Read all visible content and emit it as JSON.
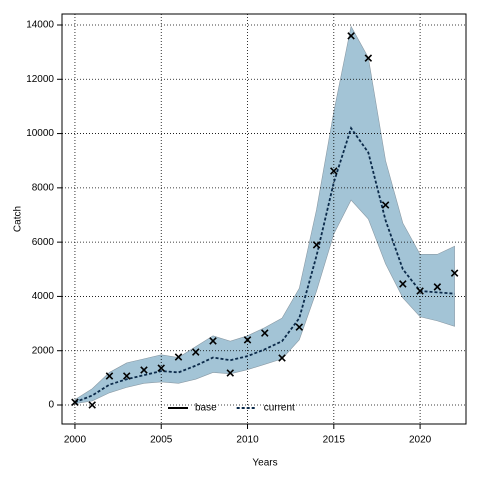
{
  "chart_data": {
    "type": "line",
    "xlabel": "Years",
    "ylabel": "Catch",
    "x": [
      2000,
      2001,
      2002,
      2003,
      2004,
      2005,
      2006,
      2007,
      2008,
      2009,
      2010,
      2011,
      2012,
      2013,
      2014,
      2015,
      2016,
      2017,
      2018,
      2019,
      2020,
      2021,
      2022
    ],
    "observed": {
      "values": [
        100,
        0,
        1070,
        1070,
        1290,
        1360,
        1770,
        1950,
        2360,
        1180,
        2400,
        2650,
        1730,
        2870,
        5900,
        8620,
        13600,
        12780,
        7370,
        4460,
        4200,
        4350,
        4860
      ],
      "color": "#000000"
    },
    "band": {
      "lower": [
        50,
        150,
        450,
        650,
        800,
        850,
        800,
        950,
        1200,
        1150,
        1300,
        1500,
        1700,
        2400,
        4200,
        6300,
        7550,
        6850,
        5200,
        3950,
        3250,
        3100,
        2900
      ],
      "upper": [
        200,
        600,
        1200,
        1550,
        1700,
        1850,
        1750,
        2150,
        2550,
        2350,
        2550,
        2850,
        3200,
        4300,
        7200,
        10800,
        13950,
        12800,
        9000,
        6700,
        5550,
        5550,
        5850
      ],
      "color": "#a3c4d6"
    },
    "series": [
      {
        "name": "base",
        "color": "#000000",
        "dashed": false,
        "values": [
          null,
          null,
          null,
          null,
          null,
          null,
          null,
          null,
          null,
          null,
          null,
          null,
          null,
          null,
          null,
          null,
          null,
          null,
          null,
          null,
          null,
          null,
          null
        ]
      },
      {
        "name": "current",
        "color": "#0b2a4a",
        "dashed": true,
        "values": [
          100,
          350,
          750,
          950,
          1100,
          1250,
          1200,
          1450,
          1750,
          1650,
          1800,
          2050,
          2350,
          3200,
          5500,
          8200,
          10200,
          9300,
          6800,
          5000,
          4200,
          4150,
          4100
        ]
      }
    ],
    "xlim": [
      1999.25,
      2022.66
    ],
    "xticks": [
      2000,
      2005,
      2010,
      2015,
      2020
    ],
    "ylim": [
      -700,
      14405
    ],
    "yticks": [
      0,
      2000,
      4000,
      6000,
      8000,
      10000,
      12000,
      14000
    ],
    "grid": true,
    "legend": "bottom"
  }
}
